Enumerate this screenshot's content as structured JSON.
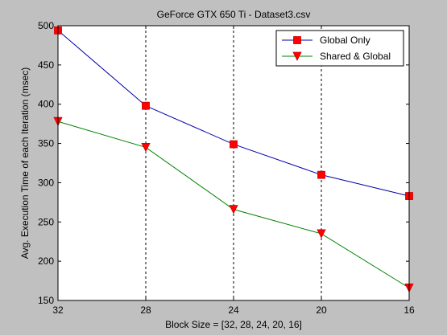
{
  "chart_data": {
    "type": "line",
    "title": "GeForce GTX 650 Ti - Dataset3.csv",
    "xlabel": "Block Size = [32, 28, 24, 20, 16]",
    "ylabel": "Avg. Execution Time of each Iteration (msec)",
    "categories": [
      "32",
      "28",
      "24",
      "20",
      "16"
    ],
    "ylim": [
      150,
      500
    ],
    "yticks": [
      150,
      200,
      250,
      300,
      350,
      400,
      450,
      500
    ],
    "grid": "vertical dashed lines at each x tick",
    "legend_position": "top-right",
    "series": [
      {
        "name": "Global Only",
        "values": [
          494,
          398,
          349,
          310,
          283
        ],
        "color": "#0000aa",
        "marker": "square",
        "marker_color": "#ff0000"
      },
      {
        "name": "Shared & Global",
        "values": [
          378,
          345,
          266,
          235,
          166
        ],
        "color": "#008000",
        "marker": "triangle-down",
        "marker_color": "#ff0000"
      }
    ]
  },
  "colors": {
    "figure_background": "#c0c0c0",
    "plot_background": "#ffffff"
  }
}
